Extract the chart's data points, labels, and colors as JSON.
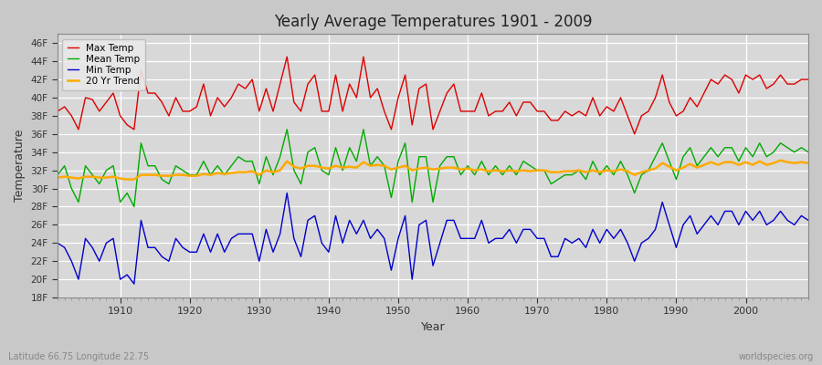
{
  "title": "Yearly Average Temperatures 1901 - 2009",
  "xlabel": "Year",
  "ylabel": "Temperature",
  "subtitle_left": "Latitude 66.75 Longitude 22.75",
  "subtitle_right": "worldspecies.org",
  "ylim": [
    18,
    47
  ],
  "yticks": [
    18,
    20,
    22,
    24,
    26,
    28,
    30,
    32,
    34,
    36,
    38,
    40,
    42,
    44,
    46
  ],
  "ytick_labels": [
    "18F",
    "20F",
    "22F",
    "24F",
    "26F",
    "28F",
    "30F",
    "32F",
    "34F",
    "36F",
    "38F",
    "40F",
    "42F",
    "44F",
    "46F"
  ],
  "xlim": [
    1901,
    2009
  ],
  "xticks": [
    1910,
    1920,
    1930,
    1940,
    1950,
    1960,
    1970,
    1980,
    1990,
    2000
  ],
  "legend_labels": [
    "Max Temp",
    "Mean Temp",
    "Min Temp",
    "20 Yr Trend"
  ],
  "colors": {
    "max": "#dd0000",
    "mean": "#00aa00",
    "min": "#0000cc",
    "trend": "#ffaa00"
  },
  "fig_bg_color": "#c8c8c8",
  "plot_bg_color": "#d8d8d8",
  "grid_color": "#ffffff",
  "max_temp": [
    38.5,
    39.0,
    38.0,
    36.5,
    40.0,
    39.8,
    38.5,
    39.5,
    40.5,
    38.0,
    37.0,
    36.5,
    43.0,
    40.5,
    40.5,
    39.5,
    38.0,
    40.0,
    38.5,
    38.5,
    39.0,
    41.5,
    38.0,
    40.0,
    39.0,
    40.0,
    41.5,
    41.0,
    42.0,
    38.5,
    41.0,
    38.5,
    41.5,
    44.5,
    39.5,
    38.5,
    41.5,
    42.5,
    38.5,
    38.5,
    42.5,
    38.5,
    41.5,
    40.0,
    44.5,
    40.0,
    41.0,
    38.5,
    36.5,
    40.0,
    42.5,
    37.0,
    41.0,
    41.5,
    36.5,
    38.5,
    40.5,
    41.5,
    38.5,
    38.5,
    38.5,
    40.5,
    38.0,
    38.5,
    38.5,
    39.5,
    38.0,
    39.5,
    39.5,
    38.5,
    38.5,
    37.5,
    37.5,
    38.5,
    38.0,
    38.5,
    38.0,
    40.0,
    38.0,
    39.0,
    38.5,
    40.0,
    38.0,
    36.0,
    38.0,
    38.5,
    40.0,
    42.5,
    39.5,
    38.0,
    38.5,
    40.0,
    39.0,
    40.5,
    42.0,
    41.5,
    42.5,
    42.0,
    40.5,
    42.5,
    42.0,
    42.5,
    41.0,
    41.5,
    42.5,
    41.5,
    41.5,
    42.0,
    42.0
  ],
  "mean_temp": [
    31.5,
    32.5,
    30.0,
    28.5,
    32.5,
    31.5,
    30.5,
    32.0,
    32.5,
    28.5,
    29.5,
    28.0,
    35.0,
    32.5,
    32.5,
    31.0,
    30.5,
    32.5,
    32.0,
    31.5,
    31.5,
    33.0,
    31.5,
    32.5,
    31.5,
    32.5,
    33.5,
    33.0,
    33.0,
    30.5,
    33.5,
    31.5,
    33.5,
    36.5,
    32.0,
    30.5,
    34.0,
    34.5,
    32.0,
    31.5,
    34.5,
    32.0,
    34.5,
    33.0,
    36.5,
    32.5,
    33.5,
    32.5,
    29.0,
    33.0,
    35.0,
    28.5,
    33.5,
    33.5,
    28.5,
    32.5,
    33.5,
    33.5,
    31.5,
    32.5,
    31.5,
    33.0,
    31.5,
    32.5,
    31.5,
    32.5,
    31.5,
    33.0,
    32.5,
    32.0,
    32.0,
    30.5,
    31.0,
    31.5,
    31.5,
    32.0,
    31.0,
    33.0,
    31.5,
    32.5,
    31.5,
    33.0,
    31.5,
    29.5,
    31.5,
    32.0,
    33.5,
    35.0,
    33.0,
    31.0,
    33.5,
    34.5,
    32.5,
    33.5,
    34.5,
    33.5,
    34.5,
    34.5,
    33.0,
    34.5,
    33.5,
    35.0,
    33.5,
    34.0,
    35.0,
    34.5,
    34.0,
    34.5,
    34.0
  ],
  "min_temp": [
    24.0,
    23.5,
    22.0,
    20.0,
    24.5,
    23.5,
    22.0,
    24.0,
    24.5,
    20.0,
    20.5,
    19.5,
    26.5,
    23.5,
    23.5,
    22.5,
    22.0,
    24.5,
    23.5,
    23.0,
    23.0,
    25.0,
    23.0,
    25.0,
    23.0,
    24.5,
    25.0,
    25.0,
    25.0,
    22.0,
    25.5,
    23.0,
    25.0,
    29.5,
    24.5,
    22.5,
    26.5,
    27.0,
    24.0,
    23.0,
    27.0,
    24.0,
    26.5,
    25.0,
    26.5,
    24.5,
    25.5,
    24.5,
    21.0,
    24.5,
    27.0,
    20.0,
    26.0,
    26.5,
    21.5,
    24.0,
    26.5,
    26.5,
    24.5,
    24.5,
    24.5,
    26.5,
    24.0,
    24.5,
    24.5,
    25.5,
    24.0,
    25.5,
    25.5,
    24.5,
    24.5,
    22.5,
    22.5,
    24.5,
    24.0,
    24.5,
    23.5,
    25.5,
    24.0,
    25.5,
    24.5,
    25.5,
    24.0,
    22.0,
    24.0,
    24.5,
    25.5,
    28.5,
    26.0,
    23.5,
    26.0,
    27.0,
    25.0,
    26.0,
    27.0,
    26.0,
    27.5,
    27.5,
    26.0,
    27.5,
    26.5,
    27.5,
    26.0,
    26.5,
    27.5,
    26.5,
    26.0,
    27.0,
    26.5
  ],
  "trend": [
    31.2,
    31.3,
    31.2,
    31.1,
    31.3,
    31.3,
    31.2,
    31.2,
    31.3,
    31.1,
    31.0,
    31.0,
    31.5,
    31.5,
    31.5,
    31.4,
    31.4,
    31.5,
    31.5,
    31.4,
    31.4,
    31.6,
    31.5,
    31.7,
    31.6,
    31.7,
    31.8,
    31.8,
    31.9,
    31.5,
    32.0,
    31.8,
    32.0,
    33.0,
    32.4,
    32.2,
    32.5,
    32.5,
    32.3,
    32.2,
    32.5,
    32.3,
    32.4,
    32.3,
    32.9,
    32.5,
    32.6,
    32.5,
    32.1,
    32.3,
    32.5,
    32.0,
    32.2,
    32.3,
    32.1,
    32.2,
    32.3,
    32.3,
    32.1,
    32.2,
    32.0,
    32.1,
    31.9,
    32.0,
    31.9,
    32.0,
    31.9,
    32.0,
    31.9,
    32.0,
    32.0,
    31.8,
    31.8,
    31.9,
    31.9,
    32.0,
    31.8,
    32.0,
    31.8,
    32.0,
    31.9,
    32.1,
    31.9,
    31.5,
    31.8,
    32.0,
    32.2,
    32.8,
    32.4,
    32.0,
    32.3,
    32.7,
    32.3,
    32.6,
    32.9,
    32.6,
    32.9,
    32.9,
    32.6,
    32.9,
    32.6,
    33.0,
    32.6,
    32.8,
    33.1,
    32.9,
    32.8,
    32.9,
    32.8
  ]
}
